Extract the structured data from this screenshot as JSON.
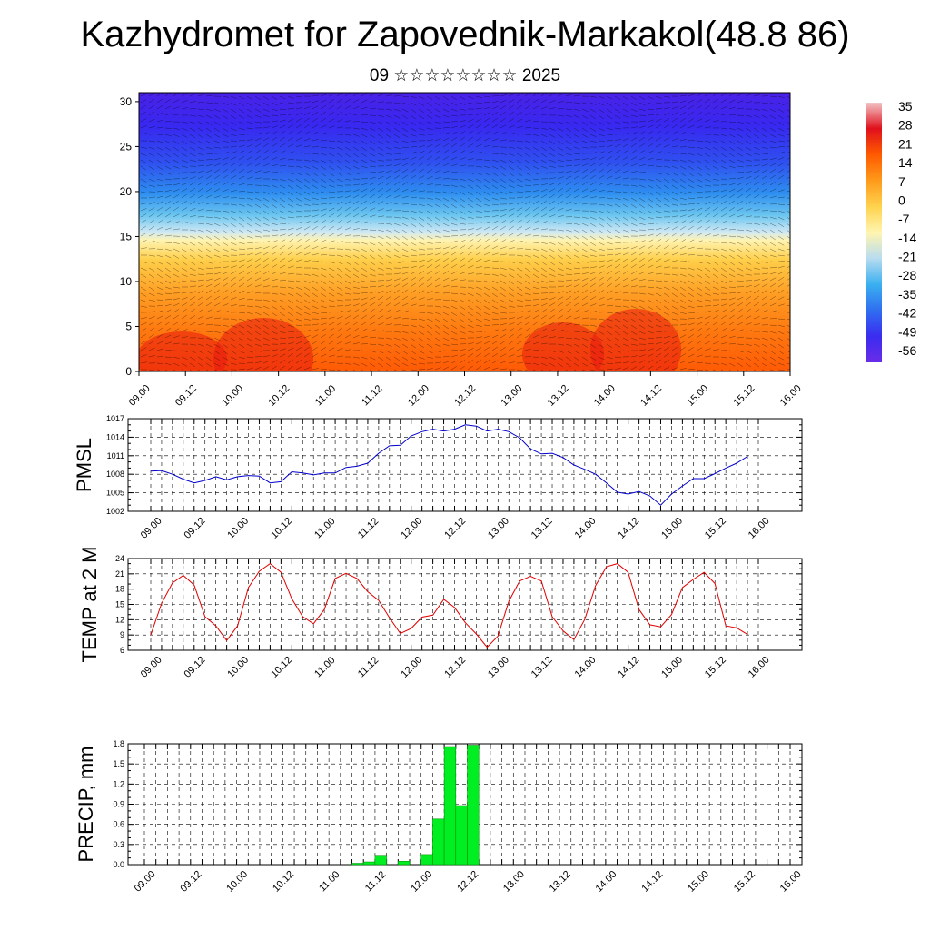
{
  "title": "Kazhydromet for Zapovednik-Markakol(48.8 86)",
  "subtitle": "09 ☆☆☆☆☆☆☆☆ 2025",
  "time_labels": [
    "09.00",
    "09.12",
    "10.00",
    "10.12",
    "11.00",
    "11.12",
    "12.00",
    "12.12",
    "13.00",
    "13.12",
    "14.00",
    "14.12",
    "15.00",
    "15.12",
    "16.00"
  ],
  "chart_data": [
    {
      "type": "heatmap",
      "name": "cross-section",
      "y_ticks": [
        0,
        5,
        10,
        15,
        20,
        25,
        30
      ],
      "ylim": [
        0,
        31
      ],
      "colorbar": {
        "labels": [
          "35",
          "28",
          "21",
          "14",
          "7",
          "0",
          "-7",
          "-14",
          "-21",
          "-28",
          "-35",
          "-42",
          "-49",
          "-56"
        ],
        "stops": [
          "#f2c4c6",
          "#e0101c",
          "#ff5a00",
          "#ff9a1a",
          "#ffd24d",
          "#fff5b0",
          "#b8dcf0",
          "#3ab0f0",
          "#2f6ef0",
          "#3a2cf0",
          "#6a2ce8"
        ]
      }
    },
    {
      "type": "line",
      "name": "PMSL",
      "ylabel": "PMSL",
      "ylim": [
        1002,
        1017
      ],
      "y_ticks": [
        1002,
        1005,
        1008,
        1011,
        1014,
        1017
      ],
      "color": "#0000cc",
      "x_hours": [
        0,
        3,
        6,
        9,
        12,
        15,
        18,
        21,
        24,
        27,
        30,
        33,
        36,
        39,
        42,
        45,
        48,
        51,
        54,
        57,
        60,
        63,
        66,
        69,
        72,
        75,
        78,
        81,
        84,
        87,
        90,
        93,
        96,
        99,
        102,
        105,
        108,
        111,
        114,
        117,
        120,
        123,
        126,
        129,
        132,
        135,
        138,
        141,
        144,
        147,
        150,
        153,
        156,
        159,
        162,
        165
      ],
      "values": [
        1008.5,
        1008.6,
        1008.0,
        1007.2,
        1006.6,
        1007.0,
        1007.6,
        1007.1,
        1007.6,
        1007.8,
        1007.7,
        1006.6,
        1006.8,
        1008.4,
        1008.2,
        1007.9,
        1008.2,
        1008.2,
        1009.1,
        1009.3,
        1009.8,
        1011.4,
        1012.6,
        1012.7,
        1014.2,
        1014.9,
        1015.3,
        1015.0,
        1015.3,
        1016.0,
        1015.8,
        1015.0,
        1015.3,
        1014.9,
        1013.9,
        1012.1,
        1011.3,
        1011.4,
        1010.7,
        1009.5,
        1008.8,
        1008.0,
        1006.6,
        1005.1,
        1004.8,
        1005.2,
        1004.5,
        1003.0,
        1004.8,
        1006.1,
        1007.3,
        1007.3,
        1008.1,
        1009.0,
        1009.8,
        1010.9
      ]
    },
    {
      "type": "line",
      "name": "TEMP at 2 M",
      "ylabel": "TEMP at 2 M",
      "ylim": [
        6,
        24
      ],
      "y_ticks": [
        6,
        9,
        12,
        15,
        18,
        21,
        24
      ],
      "color": "#e00000",
      "x_hours": [
        0,
        3,
        6,
        9,
        12,
        15,
        18,
        21,
        24,
        27,
        30,
        33,
        36,
        39,
        42,
        45,
        48,
        51,
        54,
        57,
        60,
        63,
        66,
        69,
        72,
        75,
        78,
        81,
        84,
        87,
        90,
        93,
        96,
        99,
        102,
        105,
        108,
        111,
        114,
        117,
        120,
        123,
        126,
        129,
        132,
        135,
        138,
        141,
        144,
        147,
        150,
        153,
        156,
        159,
        162,
        165
      ],
      "values": [
        9.0,
        15.2,
        19.2,
        20.7,
        18.8,
        12.6,
        10.8,
        7.9,
        10.8,
        18.3,
        21.5,
        23.0,
        21.3,
        16.1,
        12.6,
        11.2,
        14.0,
        20.1,
        21.1,
        20.1,
        17.5,
        15.8,
        12.4,
        9.3,
        10.3,
        12.5,
        12.9,
        16.0,
        14.4,
        11.4,
        9.2,
        6.6,
        8.8,
        15.6,
        19.6,
        20.5,
        19.6,
        12.6,
        9.8,
        8.1,
        12.1,
        18.7,
        22.4,
        23.0,
        21.3,
        14.0,
        11.0,
        10.6,
        13.0,
        18.3,
        19.9,
        21.3,
        19.1,
        10.8,
        10.4,
        9.1
      ]
    },
    {
      "type": "bar",
      "name": "PRECIP, mm",
      "ylabel": "PRECIP, mm",
      "ylim": [
        0,
        1.8
      ],
      "y_ticks": [
        "0.0",
        "0.3",
        "0.6",
        "0.9",
        "1.2",
        "1.5",
        "1.8"
      ],
      "color": "#00ee22",
      "bar_width_hours": 3,
      "x_hours": [
        54,
        57,
        60,
        63,
        66,
        69,
        72,
        75,
        78,
        81,
        84,
        87
      ],
      "values": [
        0.02,
        0.04,
        0.14,
        0.0,
        0.05,
        0.0,
        0.15,
        0.68,
        1.76,
        0.88,
        1.78,
        0.0
      ]
    }
  ]
}
